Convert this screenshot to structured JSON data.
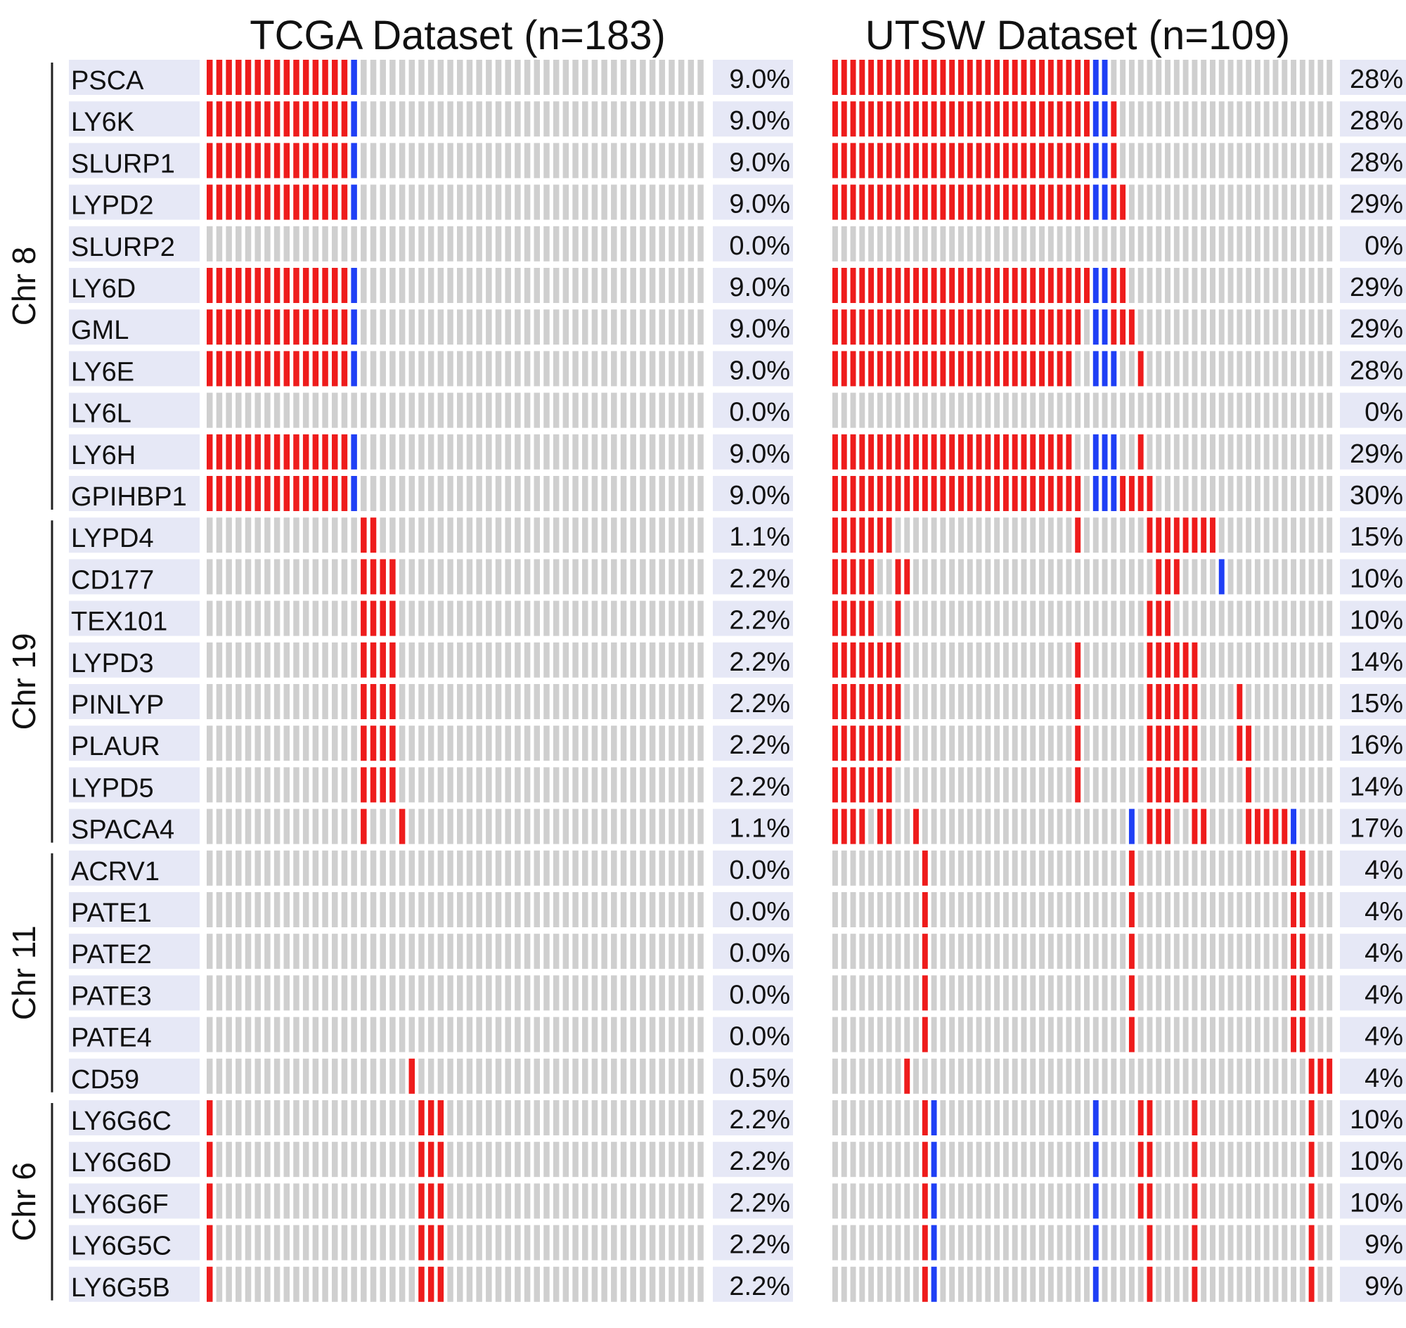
{
  "chart_data": {
    "type": "heatmap",
    "subtype": "oncoprint",
    "colors": {
      "amplification": "#ee1c1c",
      "deletion": "#1f3ff5",
      "no_alteration": "#cfcfcf",
      "label_background": "#e6e8f6"
    },
    "genes": [
      "PSCA",
      "LY6K",
      "SLURP1",
      "LYPD2",
      "SLURP2",
      "LY6D",
      "GML",
      "LY6E",
      "LY6L",
      "LY6H",
      "GPIHBP1",
      "LYPD4",
      "CD177",
      "TEX101",
      "LYPD3",
      "PINLYP",
      "PLAUR",
      "LYPD5",
      "SPACA4",
      "ACRV1",
      "PATE1",
      "PATE2",
      "PATE3",
      "PATE4",
      "CD59",
      "LY6G6C",
      "LY6G6D",
      "LY6G6F",
      "LY6G5C",
      "LY6G5B"
    ],
    "chromosome_groups": [
      {
        "label": "Chr 8",
        "start": 0,
        "end": 10
      },
      {
        "label": "Chr 19",
        "start": 11,
        "end": 18
      },
      {
        "label": "Chr 11",
        "start": 19,
        "end": 24
      },
      {
        "label": "Chr 6",
        "start": 25,
        "end": 29
      }
    ],
    "datasets": [
      {
        "title": "TCGA Dataset (n=183)",
        "n_columns": 52,
        "percentages": [
          "9.0%",
          "9.0%",
          "9.0%",
          "9.0%",
          "0.0%",
          "9.0%",
          "9.0%",
          "9.0%",
          "0.0%",
          "9.0%",
          "9.0%",
          "1.1%",
          "2.2%",
          "2.2%",
          "2.2%",
          "2.2%",
          "2.2%",
          "2.2%",
          "1.1%",
          "0.0%",
          "0.0%",
          "0.0%",
          "0.0%",
          "0.0%",
          "0.5%",
          "2.2%",
          "2.2%",
          "2.2%",
          "2.2%",
          "2.2%"
        ],
        "alterations": [
          {
            "amp": [
              [
                0,
                14
              ]
            ],
            "del": [
              [
                15,
                15
              ]
            ]
          },
          {
            "amp": [
              [
                0,
                14
              ]
            ],
            "del": [
              [
                15,
                15
              ]
            ]
          },
          {
            "amp": [
              [
                0,
                14
              ]
            ],
            "del": [
              [
                15,
                15
              ]
            ]
          },
          {
            "amp": [
              [
                0,
                14
              ]
            ],
            "del": [
              [
                15,
                15
              ]
            ]
          },
          {
            "amp": [],
            "del": []
          },
          {
            "amp": [
              [
                0,
                14
              ]
            ],
            "del": [
              [
                15,
                15
              ]
            ]
          },
          {
            "amp": [
              [
                0,
                14
              ]
            ],
            "del": [
              [
                15,
                15
              ]
            ]
          },
          {
            "amp": [
              [
                0,
                14
              ]
            ],
            "del": [
              [
                15,
                15
              ]
            ]
          },
          {
            "amp": [],
            "del": []
          },
          {
            "amp": [
              [
                0,
                14
              ]
            ],
            "del": [
              [
                15,
                15
              ]
            ]
          },
          {
            "amp": [
              [
                0,
                14
              ]
            ],
            "del": [
              [
                15,
                15
              ]
            ]
          },
          {
            "amp": [
              [
                16,
                17
              ]
            ],
            "del": []
          },
          {
            "amp": [
              [
                16,
                19
              ]
            ],
            "del": []
          },
          {
            "amp": [
              [
                16,
                19
              ]
            ],
            "del": []
          },
          {
            "amp": [
              [
                16,
                19
              ]
            ],
            "del": []
          },
          {
            "amp": [
              [
                16,
                19
              ]
            ],
            "del": []
          },
          {
            "amp": [
              [
                16,
                19
              ]
            ],
            "del": []
          },
          {
            "amp": [
              [
                16,
                19
              ]
            ],
            "del": []
          },
          {
            "amp": [
              [
                16,
                16
              ],
              [
                20,
                20
              ]
            ],
            "del": []
          },
          {
            "amp": [],
            "del": []
          },
          {
            "amp": [],
            "del": []
          },
          {
            "amp": [],
            "del": []
          },
          {
            "amp": [],
            "del": []
          },
          {
            "amp": [],
            "del": []
          },
          {
            "amp": [
              [
                21,
                21
              ]
            ],
            "del": []
          },
          {
            "amp": [
              [
                0,
                0
              ],
              [
                22,
                24
              ]
            ],
            "del": []
          },
          {
            "amp": [
              [
                0,
                0
              ],
              [
                22,
                24
              ]
            ],
            "del": []
          },
          {
            "amp": [
              [
                0,
                0
              ],
              [
                22,
                24
              ]
            ],
            "del": []
          },
          {
            "amp": [
              [
                0,
                0
              ],
              [
                22,
                24
              ]
            ],
            "del": []
          },
          {
            "amp": [
              [
                0,
                0
              ],
              [
                22,
                24
              ]
            ],
            "del": []
          }
        ]
      },
      {
        "title": "UTSW Dataset (n=109)",
        "n_columns": 56,
        "percentages": [
          "28%",
          "28%",
          "28%",
          "29%",
          "0%",
          "29%",
          "29%",
          "28%",
          "0%",
          "29%",
          "30%",
          "15%",
          "10%",
          "10%",
          "14%",
          "15%",
          "16%",
          "14%",
          "17%",
          "4%",
          "4%",
          "4%",
          "4%",
          "4%",
          "4%",
          "10%",
          "10%",
          "10%",
          "9%",
          "9%"
        ],
        "alterations": [
          {
            "amp": [
              [
                0,
                28
              ]
            ],
            "del": [
              [
                29,
                30
              ]
            ]
          },
          {
            "amp": [
              [
                0,
                28
              ],
              [
                31,
                31
              ]
            ],
            "del": [
              [
                29,
                30
              ]
            ]
          },
          {
            "amp": [
              [
                0,
                28
              ],
              [
                31,
                31
              ]
            ],
            "del": [
              [
                29,
                30
              ]
            ]
          },
          {
            "amp": [
              [
                0,
                28
              ],
              [
                31,
                32
              ]
            ],
            "del": [
              [
                29,
                30
              ]
            ]
          },
          {
            "amp": [],
            "del": []
          },
          {
            "amp": [
              [
                0,
                28
              ],
              [
                31,
                32
              ]
            ],
            "del": [
              [
                29,
                30
              ]
            ]
          },
          {
            "amp": [
              [
                0,
                27
              ],
              [
                31,
                33
              ]
            ],
            "del": [
              [
                29,
                30
              ]
            ]
          },
          {
            "amp": [
              [
                0,
                26
              ],
              [
                34,
                34
              ]
            ],
            "del": [
              [
                29,
                31
              ]
            ]
          },
          {
            "amp": [],
            "del": []
          },
          {
            "amp": [
              [
                0,
                26
              ],
              [
                34,
                34
              ]
            ],
            "del": [
              [
                29,
                31
              ]
            ]
          },
          {
            "amp": [
              [
                0,
                27
              ],
              [
                32,
                35
              ]
            ],
            "del": [
              [
                29,
                31
              ]
            ]
          },
          {
            "amp": [
              [
                0,
                6
              ],
              [
                27,
                27
              ],
              [
                35,
                42
              ]
            ],
            "del": []
          },
          {
            "amp": [
              [
                0,
                4
              ],
              [
                7,
                8
              ],
              [
                36,
                38
              ]
            ],
            "del": [
              [
                43,
                43
              ]
            ]
          },
          {
            "amp": [
              [
                0,
                4
              ],
              [
                7,
                7
              ],
              [
                35,
                37
              ]
            ],
            "del": []
          },
          {
            "amp": [
              [
                0,
                7
              ],
              [
                27,
                27
              ],
              [
                35,
                40
              ]
            ],
            "del": []
          },
          {
            "amp": [
              [
                0,
                7
              ],
              [
                27,
                27
              ],
              [
                35,
                40
              ],
              [
                45,
                45
              ]
            ],
            "del": []
          },
          {
            "amp": [
              [
                0,
                7
              ],
              [
                27,
                27
              ],
              [
                35,
                40
              ],
              [
                45,
                46
              ]
            ],
            "del": []
          },
          {
            "amp": [
              [
                0,
                6
              ],
              [
                27,
                27
              ],
              [
                35,
                40
              ],
              [
                46,
                46
              ]
            ],
            "del": []
          },
          {
            "amp": [
              [
                0,
                3
              ],
              [
                5,
                6
              ],
              [
                9,
                9
              ],
              [
                35,
                37
              ],
              [
                40,
                41
              ],
              [
                46,
                50
              ]
            ],
            "del": [
              [
                33,
                33
              ],
              [
                51,
                51
              ]
            ]
          },
          {
            "amp": [
              [
                10,
                10
              ],
              [
                33,
                33
              ],
              [
                51,
                52
              ]
            ],
            "del": []
          },
          {
            "amp": [
              [
                10,
                10
              ],
              [
                33,
                33
              ],
              [
                51,
                52
              ]
            ],
            "del": []
          },
          {
            "amp": [
              [
                10,
                10
              ],
              [
                33,
                33
              ],
              [
                51,
                52
              ]
            ],
            "del": []
          },
          {
            "amp": [
              [
                10,
                10
              ],
              [
                33,
                33
              ],
              [
                51,
                52
              ]
            ],
            "del": []
          },
          {
            "amp": [
              [
                10,
                10
              ],
              [
                33,
                33
              ],
              [
                51,
                52
              ]
            ],
            "del": []
          },
          {
            "amp": [
              [
                8,
                8
              ],
              [
                53,
                55
              ]
            ],
            "del": []
          },
          {
            "amp": [
              [
                10,
                10
              ],
              [
                34,
                35
              ],
              [
                40,
                40
              ],
              [
                53,
                53
              ]
            ],
            "del": [
              [
                11,
                11
              ],
              [
                29,
                29
              ]
            ]
          },
          {
            "amp": [
              [
                10,
                10
              ],
              [
                34,
                35
              ],
              [
                40,
                40
              ],
              [
                53,
                53
              ]
            ],
            "del": [
              [
                11,
                11
              ],
              [
                29,
                29
              ]
            ]
          },
          {
            "amp": [
              [
                10,
                10
              ],
              [
                34,
                35
              ],
              [
                40,
                40
              ],
              [
                53,
                53
              ]
            ],
            "del": [
              [
                11,
                11
              ],
              [
                29,
                29
              ]
            ]
          },
          {
            "amp": [
              [
                10,
                10
              ],
              [
                35,
                35
              ],
              [
                40,
                40
              ],
              [
                53,
                53
              ]
            ],
            "del": [
              [
                11,
                11
              ],
              [
                29,
                29
              ]
            ]
          },
          {
            "amp": [
              [
                10,
                10
              ],
              [
                35,
                35
              ],
              [
                40,
                40
              ],
              [
                53,
                53
              ]
            ],
            "del": [
              [
                11,
                11
              ],
              [
                29,
                29
              ]
            ]
          }
        ]
      }
    ]
  }
}
